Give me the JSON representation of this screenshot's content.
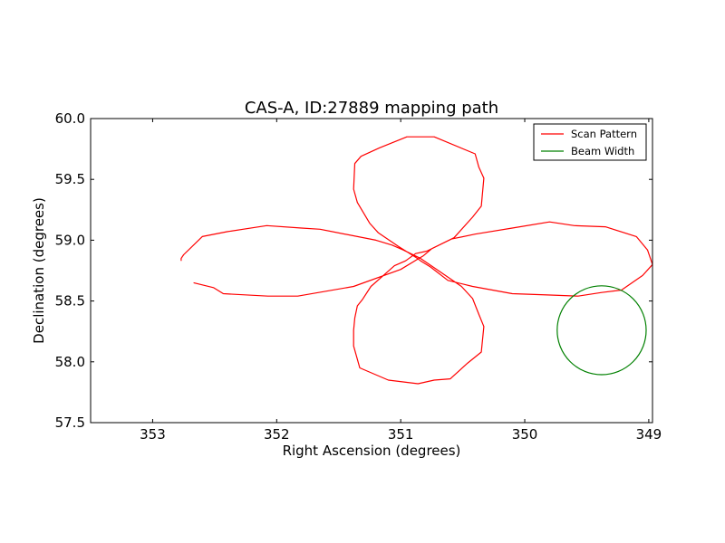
{
  "chart_data": {
    "type": "line",
    "title": "CAS-A, ID:27889 mapping path",
    "xlabel": "Right Ascension (degrees)",
    "ylabel": "Declination (degrees)",
    "xlim": [
      353.5,
      348.97
    ],
    "ylim": [
      57.5,
      60.0
    ],
    "x_inverted": true,
    "xticks": [
      353,
      352,
      351,
      350,
      349
    ],
    "xtick_labels": [
      "353",
      "352",
      "351",
      "350",
      "349"
    ],
    "yticks": [
      57.5,
      58.0,
      58.5,
      59.0,
      59.5,
      60.0
    ],
    "ytick_labels": [
      "57.5",
      "58.0",
      "58.5",
      "59.0",
      "59.5",
      "60.0"
    ],
    "grid": false,
    "legend_position": "top-right",
    "series": [
      {
        "name": "Scan Pattern",
        "color": "#ff0000",
        "points": [
          [
            352.67,
            58.65
          ],
          [
            352.51,
            58.61
          ],
          [
            352.43,
            58.56
          ],
          [
            352.07,
            58.54
          ],
          [
            351.83,
            58.54
          ],
          [
            351.38,
            58.62
          ],
          [
            351.0,
            58.76
          ],
          [
            350.87,
            58.84
          ],
          [
            350.82,
            58.87
          ],
          [
            350.75,
            58.93
          ],
          [
            350.57,
            59.02
          ],
          [
            350.42,
            59.19
          ],
          [
            350.35,
            59.28
          ],
          [
            350.33,
            59.51
          ],
          [
            350.37,
            59.6
          ],
          [
            350.4,
            59.71
          ],
          [
            350.73,
            59.85
          ],
          [
            350.95,
            59.85
          ],
          [
            351.17,
            59.76
          ],
          [
            351.32,
            59.69
          ],
          [
            351.37,
            59.63
          ],
          [
            351.38,
            59.42
          ],
          [
            351.35,
            59.31
          ],
          [
            351.25,
            59.14
          ],
          [
            351.18,
            59.06
          ],
          [
            351.02,
            58.95
          ],
          [
            350.88,
            58.86
          ],
          [
            350.84,
            58.83
          ],
          [
            350.76,
            58.78
          ],
          [
            350.62,
            58.67
          ],
          [
            350.42,
            58.62
          ],
          [
            350.1,
            58.56
          ],
          [
            349.82,
            58.55
          ],
          [
            349.57,
            58.54
          ],
          [
            349.38,
            58.57
          ],
          [
            349.22,
            58.59
          ],
          [
            349.05,
            58.71
          ],
          [
            348.97,
            58.8
          ],
          [
            349.01,
            58.92
          ],
          [
            349.1,
            59.03
          ],
          [
            349.35,
            59.11
          ],
          [
            349.6,
            59.12
          ],
          [
            349.8,
            59.15
          ],
          [
            350.1,
            59.1
          ],
          [
            350.4,
            59.05
          ],
          [
            350.59,
            59.01
          ],
          [
            350.79,
            58.91
          ],
          [
            350.88,
            58.89
          ],
          [
            350.96,
            58.83
          ],
          [
            351.05,
            58.79
          ],
          [
            351.14,
            58.71
          ],
          [
            351.24,
            58.62
          ],
          [
            351.31,
            58.51
          ],
          [
            351.35,
            58.46
          ],
          [
            351.37,
            58.36
          ],
          [
            351.38,
            58.26
          ],
          [
            351.38,
            58.13
          ],
          [
            351.33,
            57.95
          ],
          [
            351.1,
            57.85
          ],
          [
            350.86,
            57.82
          ],
          [
            350.73,
            57.85
          ],
          [
            350.6,
            57.86
          ],
          [
            350.46,
            57.99
          ],
          [
            350.35,
            58.08
          ],
          [
            350.33,
            58.29
          ],
          [
            350.37,
            58.39
          ],
          [
            350.42,
            58.52
          ],
          [
            350.51,
            58.62
          ],
          [
            350.71,
            58.76
          ],
          [
            350.84,
            58.85
          ],
          [
            350.98,
            58.92
          ],
          [
            351.07,
            58.96
          ],
          [
            351.2,
            59.0
          ],
          [
            351.65,
            59.09
          ],
          [
            351.8,
            59.1
          ],
          [
            352.08,
            59.12
          ],
          [
            352.4,
            59.07
          ],
          [
            352.6,
            59.03
          ],
          [
            352.75,
            58.88
          ],
          [
            352.77,
            58.85
          ],
          [
            352.77,
            58.83
          ]
        ]
      },
      {
        "name": "Beam Width",
        "color": "#008000",
        "shape": "circle",
        "center": [
          349.38,
          58.26
        ],
        "radius_dec": 0.365
      }
    ]
  }
}
